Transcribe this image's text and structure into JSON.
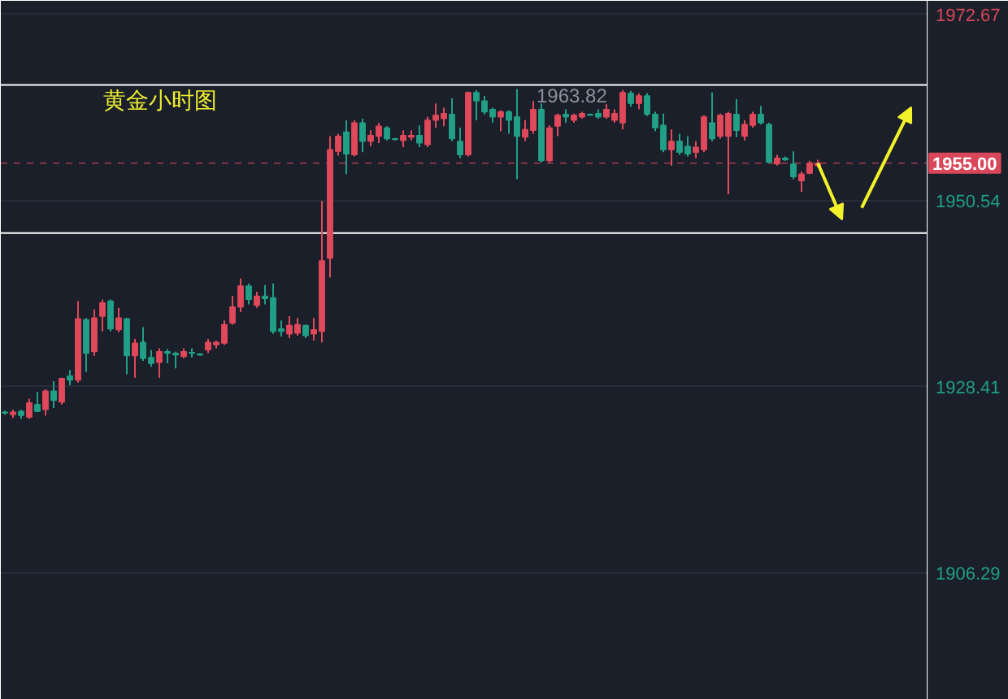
{
  "chart_data": {
    "type": "candlestick",
    "title": "黄金小时图",
    "categories": [
      null,
      null,
      null,
      null,
      null,
      null,
      null,
      null,
      null,
      null,
      null,
      null,
      null,
      null,
      null,
      null,
      null,
      null,
      null,
      null,
      null,
      null,
      null,
      null,
      null,
      null,
      null,
      null,
      null,
      null,
      null,
      null,
      null,
      null,
      null,
      null,
      null,
      null,
      null,
      null,
      null,
      null,
      null,
      null,
      null,
      null,
      null,
      null,
      null,
      null,
      null,
      null,
      null,
      null,
      null,
      null,
      null,
      null,
      null,
      null,
      null,
      null,
      null,
      null,
      null,
      null,
      null,
      null,
      null,
      null,
      null,
      null,
      null,
      null,
      null,
      null,
      null,
      null,
      null,
      null,
      null,
      null,
      null,
      null,
      null,
      null,
      null,
      null,
      null,
      null,
      null,
      null,
      null,
      null,
      null,
      null,
      null,
      null,
      null,
      null,
      null,
      null,
      null,
      null,
      null,
      null,
      null,
      null,
      null,
      null,
      null,
      null,
      null,
      null
    ],
    "ohlc": [
      [
        1925.4,
        1925.6,
        1925.1,
        1925.3
      ],
      [
        1925.1,
        1925.7,
        1924.7,
        1925.4
      ],
      [
        1925.5,
        1925.7,
        1924.6,
        1925.0
      ],
      [
        1924.8,
        1927.0,
        1924.6,
        1926.5
      ],
      [
        1926.3,
        1927.8,
        1925.4,
        1925.5
      ],
      [
        1925.7,
        1928.1,
        1925.0,
        1927.9
      ],
      [
        1927.9,
        1929.1,
        1925.9,
        1926.8
      ],
      [
        1926.6,
        1929.5,
        1926.3,
        1929.4
      ],
      [
        1929.7,
        1930.4,
        1928.6,
        1929.2
      ],
      [
        1929.2,
        1938.6,
        1928.9,
        1936.5
      ],
      [
        1936.4,
        1936.6,
        1930.2,
        1932.4
      ],
      [
        1932.6,
        1937.6,
        1932.1,
        1936.6
      ],
      [
        1936.8,
        1938.8,
        1935.0,
        1938.4
      ],
      [
        1938.6,
        1938.8,
        1935.0,
        1935.3
      ],
      [
        1935.2,
        1937.8,
        1934.9,
        1936.6
      ],
      [
        1936.5,
        1936.6,
        1929.9,
        1932.1
      ],
      [
        1932.1,
        1934.1,
        1929.5,
        1933.6
      ],
      [
        1933.7,
        1935.5,
        1931.5,
        1931.8
      ],
      [
        1931.9,
        1932.8,
        1930.8,
        1931.2
      ],
      [
        1931.3,
        1933.0,
        1929.5,
        1932.6
      ],
      [
        1932.6,
        1932.9,
        1931.2,
        1932.4
      ],
      [
        1932.4,
        1932.6,
        1930.6,
        1932.2
      ],
      [
        1932.0,
        1933.0,
        1931.8,
        1932.6
      ],
      [
        1932.5,
        1933.0,
        1931.9,
        1932.4
      ],
      [
        1932.3,
        1932.4,
        1932.1,
        1932.2
      ],
      [
        1932.8,
        1934.1,
        1932.4,
        1933.7
      ],
      [
        1933.4,
        1933.9,
        1933.0,
        1933.7
      ],
      [
        1933.6,
        1936.3,
        1933.4,
        1935.8
      ],
      [
        1936.0,
        1939.2,
        1935.8,
        1937.9
      ],
      [
        1937.9,
        1941.3,
        1937.3,
        1940.4
      ],
      [
        1940.4,
        1940.7,
        1938.2,
        1938.8
      ],
      [
        1938.1,
        1939.7,
        1937.8,
        1939.2
      ],
      [
        1939.2,
        1940.5,
        1938.2,
        1938.9
      ],
      [
        1939.0,
        1940.7,
        1934.7,
        1935.0
      ],
      [
        1935.3,
        1936.3,
        1934.4,
        1935.0
      ],
      [
        1934.7,
        1936.8,
        1934.2,
        1935.7
      ],
      [
        1934.8,
        1936.6,
        1934.5,
        1935.8
      ],
      [
        1935.7,
        1935.8,
        1934.2,
        1934.5
      ],
      [
        1934.7,
        1936.6,
        1933.9,
        1935.2
      ],
      [
        1935.0,
        1950.5,
        1933.7,
        1943.4
      ],
      [
        1943.7,
        1958.2,
        1941.4,
        1956.6
      ],
      [
        1956.4,
        1958.5,
        1955.9,
        1958.2
      ],
      [
        1958.7,
        1960.1,
        1953.7,
        1956.1
      ],
      [
        1956.0,
        1960.1,
        1955.8,
        1959.8
      ],
      [
        1959.8,
        1960.3,
        1956.3,
        1957.6
      ],
      [
        1957.6,
        1958.9,
        1957.0,
        1958.3
      ],
      [
        1958.2,
        1959.8,
        1957.4,
        1959.4
      ],
      [
        1959.2,
        1959.4,
        1957.7,
        1957.9
      ],
      [
        1957.9,
        1958.0,
        1957.7,
        1957.8
      ],
      [
        1957.7,
        1958.9,
        1956.9,
        1958.3
      ],
      [
        1958.1,
        1958.9,
        1957.7,
        1958.3
      ],
      [
        1958.3,
        1959.5,
        1956.9,
        1957.4
      ],
      [
        1957.2,
        1960.5,
        1956.9,
        1960.1
      ],
      [
        1960.1,
        1962.1,
        1959.2,
        1960.7
      ],
      [
        1960.3,
        1961.6,
        1959.4,
        1960.9
      ],
      [
        1960.8,
        1962.7,
        1957.6,
        1957.9
      ],
      [
        1957.6,
        1959.2,
        1955.6,
        1956.0
      ],
      [
        1956.0,
        1963.5,
        1955.8,
        1963.4
      ],
      [
        1963.4,
        1963.7,
        1960.1,
        1962.4
      ],
      [
        1962.4,
        1963.0,
        1960.8,
        1961.1
      ],
      [
        1961.4,
        1961.6,
        1959.8,
        1960.5
      ],
      [
        1960.5,
        1961.3,
        1958.8,
        1961.1
      ],
      [
        1961.1,
        1961.3,
        1958.5,
        1960.1
      ],
      [
        1960.5,
        1963.82,
        1953.1,
        1958.2
      ],
      [
        1958.1,
        1960.1,
        1957.6,
        1959.0
      ],
      [
        1958.9,
        1962.4,
        1958.5,
        1961.4
      ],
      [
        1961.4,
        1962.1,
        1955.1,
        1955.3
      ],
      [
        1955.3,
        1959.5,
        1955.1,
        1959.2
      ],
      [
        1959.4,
        1960.9,
        1958.2,
        1960.7
      ],
      [
        1960.8,
        1961.4,
        1959.8,
        1960.5
      ],
      [
        1960.1,
        1960.9,
        1959.8,
        1960.7
      ],
      [
        1960.5,
        1961.1,
        1960.3,
        1960.9
      ],
      [
        1960.8,
        1960.9,
        1960.6,
        1960.7
      ],
      [
        1960.9,
        1961.4,
        1960.3,
        1960.5
      ],
      [
        1960.5,
        1962.0,
        1960.3,
        1961.4
      ],
      [
        1960.1,
        1961.4,
        1959.8,
        1960.9
      ],
      [
        1959.8,
        1963.7,
        1959.0,
        1963.4
      ],
      [
        1963.3,
        1963.6,
        1961.7,
        1962.1
      ],
      [
        1962.1,
        1963.3,
        1961.4,
        1963.0
      ],
      [
        1963.0,
        1963.3,
        1960.6,
        1960.8
      ],
      [
        1960.8,
        1961.1,
        1958.8,
        1959.2
      ],
      [
        1959.5,
        1960.9,
        1956.3,
        1956.6
      ],
      [
        1956.6,
        1959.0,
        1954.7,
        1957.6
      ],
      [
        1957.6,
        1958.5,
        1956.0,
        1956.3
      ],
      [
        1957.0,
        1958.2,
        1955.8,
        1956.1
      ],
      [
        1956.3,
        1957.6,
        1955.6,
        1956.9
      ],
      [
        1956.6,
        1960.7,
        1956.3,
        1960.5
      ],
      [
        1959.8,
        1963.4,
        1957.6,
        1957.9
      ],
      [
        1958.2,
        1960.9,
        1957.9,
        1960.7
      ],
      [
        1958.2,
        1961.1,
        1951.3,
        1960.9
      ],
      [
        1960.8,
        1962.6,
        1958.1,
        1958.9
      ],
      [
        1958.2,
        1960.1,
        1957.7,
        1959.6
      ],
      [
        1959.5,
        1961.1,
        1959.2,
        1960.8
      ],
      [
        1960.8,
        1961.8,
        1959.6,
        1959.8
      ],
      [
        1959.6,
        1959.8,
        1955.0,
        1955.1
      ],
      [
        1954.9,
        1956.0,
        1954.7,
        1955.6
      ],
      [
        1955.6,
        1955.8,
        1955.3,
        1955.4
      ],
      [
        1954.9,
        1956.4,
        1953.1,
        1953.4
      ],
      [
        1952.9,
        1954.0,
        1951.6,
        1953.7
      ],
      [
        1953.8,
        1955.3,
        1953.7,
        1955.0
      ],
      [
        1954.7,
        1955.4,
        1954.5,
        1955.0
      ],
      null,
      null,
      null,
      null,
      null,
      null,
      null,
      null,
      null,
      null,
      null,
      null,
      null
    ],
    "colors": [
      "#21a087",
      "#e0495b",
      "#21a087",
      "#e0495b",
      "#21a087",
      "#e0495b",
      "#21a087",
      "#e0495b",
      "#21a087",
      "#e0495b",
      "#21a087",
      "#e0495b",
      "#e0495b",
      "#21a087",
      "#e0495b",
      "#21a087",
      "#e0495b",
      "#21a087",
      "#21a087",
      "#e0495b",
      "#21a087",
      "#21a087",
      "#e0495b",
      "#21a087",
      "#21a087",
      "#e0495b",
      "#e0495b",
      "#e0495b",
      "#e0495b",
      "#e0495b",
      "#21a087",
      "#e0495b",
      "#21a087",
      "#21a087",
      "#21a087",
      "#e0495b",
      "#e0495b",
      "#21a087",
      "#e0495b",
      "#e0495b",
      "#e0495b",
      "#e0495b",
      "#21a087",
      "#e0495b",
      "#21a087",
      "#e0495b",
      "#e0495b",
      "#21a087",
      "#21a087",
      "#e0495b",
      "#e0495b",
      "#21a087",
      "#e0495b",
      "#e0495b",
      "#e0495b",
      "#21a087",
      "#21a087",
      "#e0495b",
      "#21a087",
      "#21a087",
      "#21a087",
      "#e0495b",
      "#21a087",
      "#21a087",
      "#e0495b",
      "#e0495b",
      "#21a087",
      "#e0495b",
      "#e0495b",
      "#21a087",
      "#e0495b",
      "#e0495b",
      "#21a087",
      "#21a087",
      "#e0495b",
      "#e0495b",
      "#e0495b",
      "#21a087",
      "#e0495b",
      "#21a087",
      "#21a087",
      "#21a087",
      "#e0495b",
      "#21a087",
      "#21a087",
      "#e0495b",
      "#e0495b",
      "#21a087",
      "#e0495b",
      "#e0495b",
      "#21a087",
      "#e0495b",
      "#e0495b",
      "#21a087",
      "#21a087",
      "#e0495b",
      "#21a087",
      "#21a087",
      "#e0495b",
      "#e0495b",
      "#e0495b",
      null,
      null,
      null,
      null,
      null,
      null,
      null,
      null,
      null,
      null,
      null,
      null,
      null
    ],
    "ylim": [
      1891.2,
      1974.3
    ],
    "yticks": [
      1906.29,
      1928.41,
      1950.54,
      1972.67
    ],
    "grid": "y",
    "tick_labels": "y",
    "ref_lines": [
      {
        "axis": "y",
        "value": 1964.3,
        "color": "#ffffff"
      },
      {
        "axis": "y",
        "value": 1946.7,
        "color": "#ffffff"
      },
      {
        "axis": "y",
        "value": 1955.0,
        "label": "1955.00",
        "color": "#d9475a",
        "line_style": "dashed"
      }
    ],
    "annotations": [
      {
        "text": "1963.82",
        "y": 1963.82
      }
    ]
  }
}
